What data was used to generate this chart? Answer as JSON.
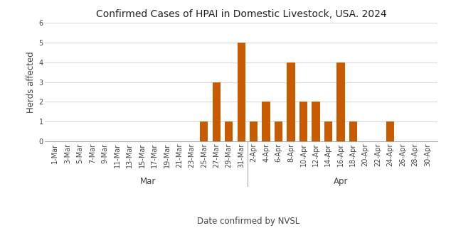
{
  "title": "Confirmed Cases of HPAI in Domestic Livestock, USA. 2024",
  "xlabel": "Date confirmed by NVSL",
  "ylabel": "Herds affected",
  "bar_color": "#C85A00",
  "ylim": [
    0,
    6
  ],
  "yticks": [
    0,
    1,
    2,
    3,
    4,
    5,
    6
  ],
  "categories": [
    "1-Mar",
    "3-Mar",
    "5-Mar",
    "7-Mar",
    "9-Mar",
    "11-Mar",
    "13-Mar",
    "15-Mar",
    "17-Mar",
    "19-Mar",
    "21-Mar",
    "23-Mar",
    "25-Mar",
    "27-Mar",
    "29-Mar",
    "31-Mar",
    "2-Apr",
    "4-Apr",
    "6-Apr",
    "8-Apr",
    "10-Apr",
    "12-Apr",
    "14-Apr",
    "16-Apr",
    "18-Apr",
    "20-Apr",
    "22-Apr",
    "24-Apr",
    "26-Apr",
    "28-Apr",
    "30-Apr"
  ],
  "values": [
    0,
    0,
    0,
    0,
    0,
    0,
    0,
    0,
    0,
    0,
    0,
    0,
    1,
    3,
    1,
    5,
    1,
    2,
    1,
    4,
    2,
    2,
    1,
    4,
    1,
    0,
    0,
    1,
    0,
    0,
    0
  ],
  "background_color": "#ffffff",
  "grid_color": "#d8d8d8",
  "title_fontsize": 10,
  "axis_fontsize": 8.5,
  "tick_fontsize": 7,
  "mar_indices": [
    0,
    15
  ],
  "apr_indices": [
    16,
    30
  ],
  "sep_index": 15.5,
  "mar_label": "Mar",
  "apr_label": "Apr"
}
